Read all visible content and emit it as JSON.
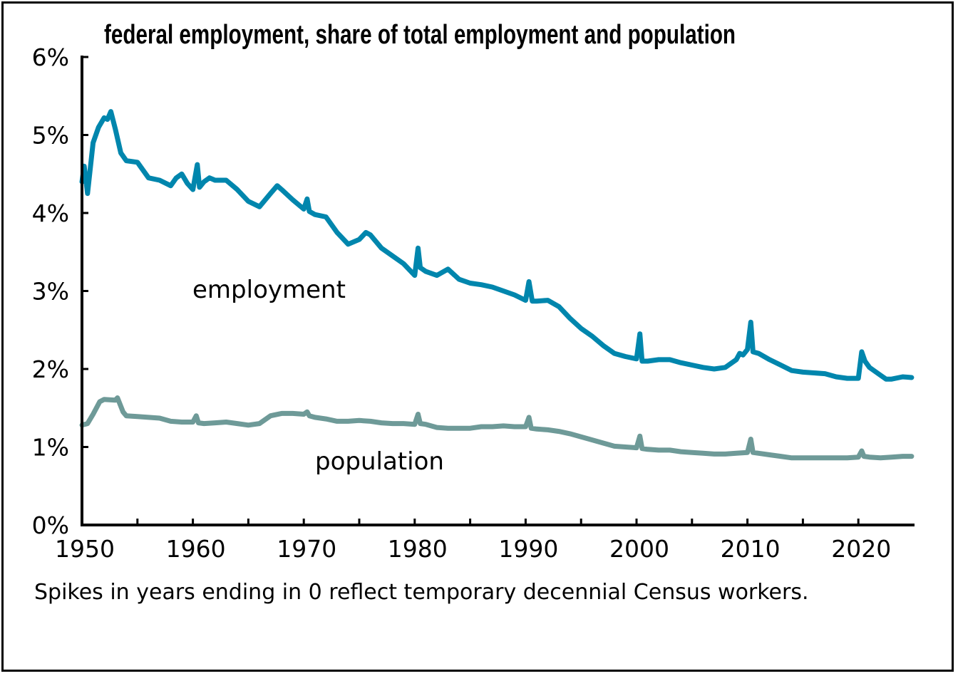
{
  "chart_data": {
    "type": "line",
    "title": "federal employment, share of total employment and population",
    "note": "Spikes in years ending in 0 reflect temporary decennial Census workers.",
    "xlim": [
      1950,
      2025
    ],
    "ylim": [
      0,
      6
    ],
    "x_ticks": [
      1950,
      1960,
      1970,
      1980,
      1990,
      2000,
      2010,
      2020
    ],
    "x_tick_labels": [
      "1950",
      "1960",
      "1970",
      "1980",
      "1990",
      "2000",
      "2010",
      "2020"
    ],
    "y_ticks": [
      0,
      1,
      2,
      3,
      4,
      5,
      6
    ],
    "y_tick_labels": [
      "0%",
      "1%",
      "2%",
      "3%",
      "4%",
      "5%",
      "6%"
    ],
    "grid": false,
    "series": [
      {
        "name": "employment",
        "color": "#0086ad",
        "points": [
          [
            1950,
            4.4
          ],
          [
            1950.2,
            4.6
          ],
          [
            1950.5,
            4.25
          ],
          [
            1951,
            4.9
          ],
          [
            1951.5,
            5.1
          ],
          [
            1952,
            5.22
          ],
          [
            1952.3,
            5.2
          ],
          [
            1952.6,
            5.3
          ],
          [
            1953,
            5.08
          ],
          [
            1953.5,
            4.77
          ],
          [
            1954,
            4.67
          ],
          [
            1955,
            4.65
          ],
          [
            1956,
            4.45
          ],
          [
            1957,
            4.42
          ],
          [
            1958,
            4.35
          ],
          [
            1958.5,
            4.45
          ],
          [
            1959,
            4.5
          ],
          [
            1959.5,
            4.38
          ],
          [
            1960,
            4.3
          ],
          [
            1960.4,
            4.62
          ],
          [
            1960.6,
            4.33
          ],
          [
            1961,
            4.4
          ],
          [
            1961.5,
            4.45
          ],
          [
            1962,
            4.42
          ],
          [
            1963,
            4.42
          ],
          [
            1964,
            4.3
          ],
          [
            1965,
            4.15
          ],
          [
            1966,
            4.08
          ],
          [
            1967,
            4.25
          ],
          [
            1967.6,
            4.35
          ],
          [
            1968,
            4.3
          ],
          [
            1969,
            4.17
          ],
          [
            1970,
            4.05
          ],
          [
            1970.3,
            4.18
          ],
          [
            1970.5,
            4.02
          ],
          [
            1971,
            3.98
          ],
          [
            1972,
            3.95
          ],
          [
            1973,
            3.75
          ],
          [
            1974,
            3.6
          ],
          [
            1975,
            3.66
          ],
          [
            1975.6,
            3.75
          ],
          [
            1976,
            3.72
          ],
          [
            1977,
            3.55
          ],
          [
            1978,
            3.45
          ],
          [
            1979,
            3.35
          ],
          [
            1980,
            3.2
          ],
          [
            1980.3,
            3.55
          ],
          [
            1980.5,
            3.3
          ],
          [
            1981,
            3.25
          ],
          [
            1982,
            3.2
          ],
          [
            1983,
            3.28
          ],
          [
            1984,
            3.15
          ],
          [
            1985,
            3.1
          ],
          [
            1986,
            3.08
          ],
          [
            1987,
            3.05
          ],
          [
            1988,
            3.0
          ],
          [
            1989,
            2.95
          ],
          [
            1990,
            2.88
          ],
          [
            1990.3,
            3.12
          ],
          [
            1990.6,
            2.87
          ],
          [
            1991,
            2.87
          ],
          [
            1992,
            2.88
          ],
          [
            1993,
            2.8
          ],
          [
            1994,
            2.65
          ],
          [
            1995,
            2.52
          ],
          [
            1996,
            2.42
          ],
          [
            1997,
            2.3
          ],
          [
            1998,
            2.2
          ],
          [
            1999,
            2.16
          ],
          [
            2000,
            2.13
          ],
          [
            2000.3,
            2.45
          ],
          [
            2000.5,
            2.1
          ],
          [
            2001,
            2.1
          ],
          [
            2002,
            2.12
          ],
          [
            2003,
            2.12
          ],
          [
            2004,
            2.08
          ],
          [
            2005,
            2.05
          ],
          [
            2006,
            2.02
          ],
          [
            2007,
            2.0
          ],
          [
            2008,
            2.02
          ],
          [
            2009,
            2.12
          ],
          [
            2009.3,
            2.2
          ],
          [
            2009.6,
            2.18
          ],
          [
            2010,
            2.25
          ],
          [
            2010.3,
            2.6
          ],
          [
            2010.5,
            2.22
          ],
          [
            2011,
            2.2
          ],
          [
            2012,
            2.12
          ],
          [
            2013,
            2.05
          ],
          [
            2014,
            1.98
          ],
          [
            2015,
            1.96
          ],
          [
            2016,
            1.95
          ],
          [
            2017,
            1.94
          ],
          [
            2018,
            1.9
          ],
          [
            2019,
            1.88
          ],
          [
            2020,
            1.88
          ],
          [
            2020.3,
            2.22
          ],
          [
            2020.6,
            2.1
          ],
          [
            2021,
            2.02
          ],
          [
            2022,
            1.92
          ],
          [
            2022.5,
            1.87
          ],
          [
            2023,
            1.87
          ],
          [
            2024,
            1.9
          ],
          [
            2024.8,
            1.89
          ]
        ]
      },
      {
        "name": "population",
        "color": "#6e9a98",
        "points": [
          [
            1950,
            1.28
          ],
          [
            1950.5,
            1.3
          ],
          [
            1951,
            1.42
          ],
          [
            1951.6,
            1.58
          ],
          [
            1952,
            1.61
          ],
          [
            1953,
            1.6
          ],
          [
            1953.2,
            1.63
          ],
          [
            1953.7,
            1.45
          ],
          [
            1954,
            1.4
          ],
          [
            1955,
            1.39
          ],
          [
            1956,
            1.38
          ],
          [
            1957,
            1.37
          ],
          [
            1958,
            1.33
          ],
          [
            1959,
            1.32
          ],
          [
            1960,
            1.32
          ],
          [
            1960.3,
            1.4
          ],
          [
            1960.5,
            1.31
          ],
          [
            1961,
            1.3
          ],
          [
            1962,
            1.31
          ],
          [
            1963,
            1.32
          ],
          [
            1964,
            1.3
          ],
          [
            1965,
            1.28
          ],
          [
            1966,
            1.3
          ],
          [
            1967,
            1.4
          ],
          [
            1968,
            1.43
          ],
          [
            1969,
            1.43
          ],
          [
            1970,
            1.42
          ],
          [
            1970.3,
            1.45
          ],
          [
            1970.5,
            1.4
          ],
          [
            1971,
            1.38
          ],
          [
            1972,
            1.36
          ],
          [
            1973,
            1.33
          ],
          [
            1974,
            1.33
          ],
          [
            1975,
            1.34
          ],
          [
            1976,
            1.33
          ],
          [
            1977,
            1.31
          ],
          [
            1978,
            1.3
          ],
          [
            1979,
            1.3
          ],
          [
            1980,
            1.29
          ],
          [
            1980.3,
            1.42
          ],
          [
            1980.5,
            1.3
          ],
          [
            1981,
            1.29
          ],
          [
            1982,
            1.25
          ],
          [
            1983,
            1.24
          ],
          [
            1984,
            1.24
          ],
          [
            1985,
            1.24
          ],
          [
            1986,
            1.26
          ],
          [
            1987,
            1.26
          ],
          [
            1988,
            1.27
          ],
          [
            1989,
            1.26
          ],
          [
            1990,
            1.26
          ],
          [
            1990.3,
            1.38
          ],
          [
            1990.5,
            1.24
          ],
          [
            1991,
            1.23
          ],
          [
            1992,
            1.22
          ],
          [
            1993,
            1.2
          ],
          [
            1994,
            1.17
          ],
          [
            1995,
            1.13
          ],
          [
            1996,
            1.09
          ],
          [
            1997,
            1.05
          ],
          [
            1998,
            1.01
          ],
          [
            1999,
            1.0
          ],
          [
            2000,
            0.99
          ],
          [
            2000.3,
            1.14
          ],
          [
            2000.5,
            0.98
          ],
          [
            2001,
            0.97
          ],
          [
            2002,
            0.96
          ],
          [
            2003,
            0.96
          ],
          [
            2004,
            0.94
          ],
          [
            2005,
            0.93
          ],
          [
            2006,
            0.92
          ],
          [
            2007,
            0.91
          ],
          [
            2008,
            0.91
          ],
          [
            2009,
            0.92
          ],
          [
            2010,
            0.93
          ],
          [
            2010.3,
            1.1
          ],
          [
            2010.5,
            0.93
          ],
          [
            2011,
            0.92
          ],
          [
            2012,
            0.9
          ],
          [
            2013,
            0.88
          ],
          [
            2014,
            0.86
          ],
          [
            2015,
            0.86
          ],
          [
            2016,
            0.86
          ],
          [
            2017,
            0.86
          ],
          [
            2018,
            0.86
          ],
          [
            2019,
            0.86
          ],
          [
            2020,
            0.87
          ],
          [
            2020.3,
            0.95
          ],
          [
            2020.5,
            0.88
          ],
          [
            2021,
            0.87
          ],
          [
            2022,
            0.86
          ],
          [
            2023,
            0.87
          ],
          [
            2024,
            0.88
          ],
          [
            2024.8,
            0.88
          ]
        ]
      }
    ],
    "labels": {
      "employment": "employment",
      "population": "population"
    }
  }
}
